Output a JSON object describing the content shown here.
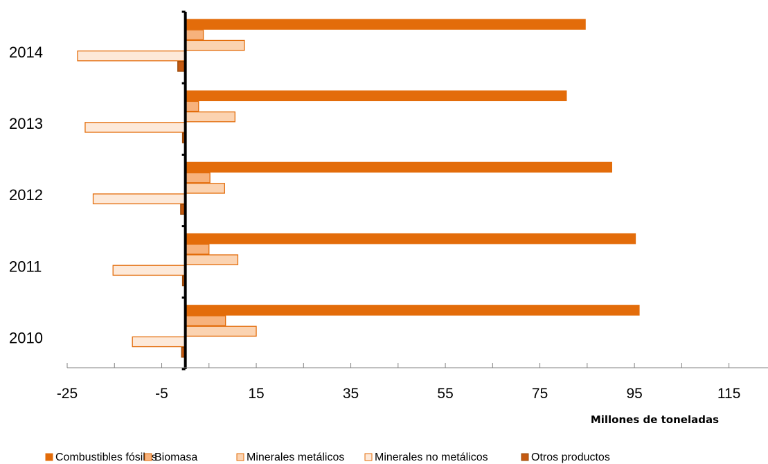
{
  "chart_data": {
    "type": "bar",
    "orientation": "horizontal",
    "categories": [
      "2010",
      "2011",
      "2012",
      "2013",
      "2014"
    ],
    "xlabel": "Millones de toneladas",
    "xlim": [
      -25,
      125
    ],
    "xticks": [
      -25,
      -5,
      15,
      35,
      55,
      75,
      95,
      115
    ],
    "legend_position": "bottom",
    "series": [
      {
        "name": "Combustibles fósiles",
        "values": [
          96,
          95.2,
          90.2,
          80.6,
          84.6
        ],
        "color": "#E36C0A",
        "border": "#E36C0A"
      },
      {
        "name": "Biomasa",
        "values": [
          8.5,
          5,
          5.2,
          2.8,
          3.8
        ],
        "color": "#F7B27C",
        "border": "#E36C0A"
      },
      {
        "name": "Minerales metálicos",
        "values": [
          15,
          11.1,
          8.3,
          10.5,
          12.5
        ],
        "color": "#FBD3B1",
        "border": "#E36C0A"
      },
      {
        "name": "Minerales no metálicos",
        "values": [
          -11.2,
          -15.3,
          -19.5,
          -21.2,
          -22.8
        ],
        "color": "#FDE9D9",
        "border": "#E36C0A"
      },
      {
        "name": "Otros productos",
        "values": [
          -0.8,
          -0.6,
          -1,
          -0.6,
          -1.6
        ],
        "color": "#C55A11",
        "border": "#984807"
      }
    ]
  }
}
